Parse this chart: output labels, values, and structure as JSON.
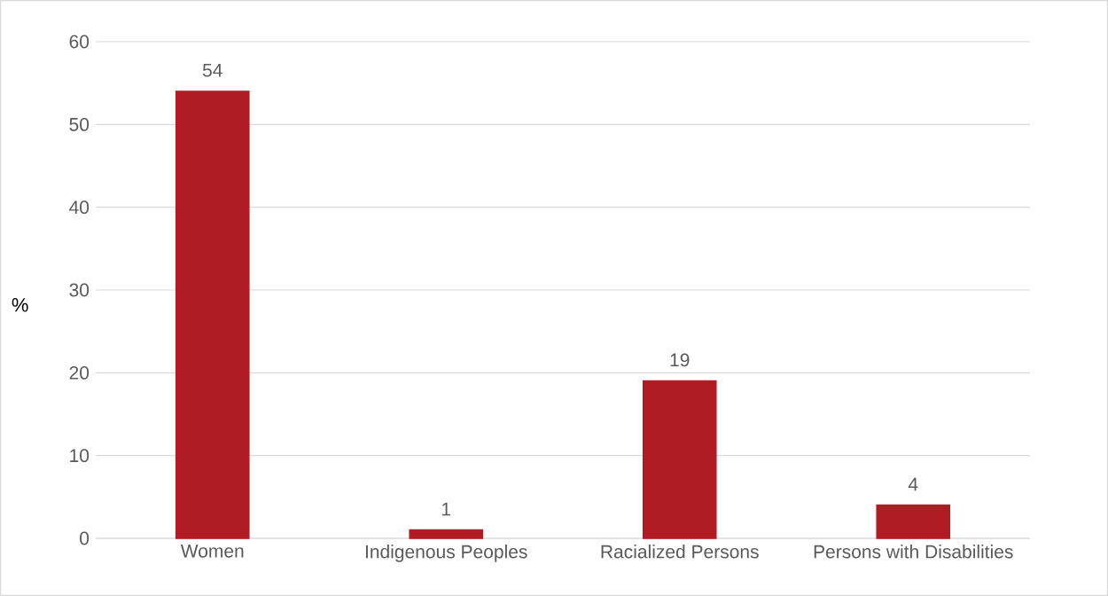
{
  "chart_data": {
    "type": "bar",
    "ylabel": "%",
    "categories": [
      "Women",
      "Indigenous Peoples",
      "Racialized Persons",
      "Persons with Disabilities"
    ],
    "values": [
      54,
      1,
      19,
      4
    ],
    "color": "#b01c24",
    "ylim": [
      0,
      60
    ],
    "yticks": [
      0,
      10,
      20,
      30,
      40,
      50,
      60
    ],
    "grid": "y",
    "data_labels": true
  }
}
